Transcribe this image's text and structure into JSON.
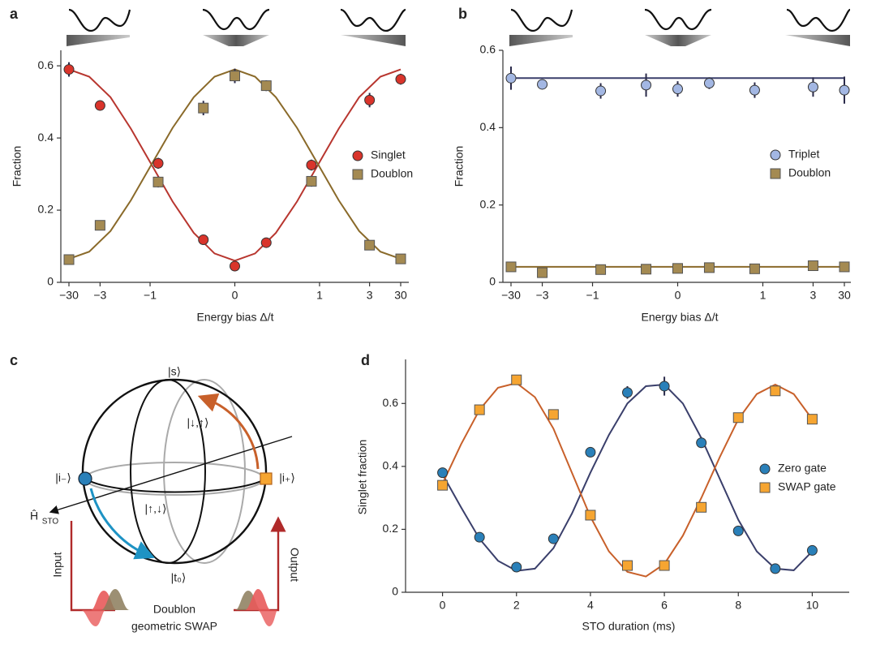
{
  "chart_data": [
    {
      "type": "scatter",
      "panel": "a",
      "xscale": "arctan",
      "x_label": "Energy bias Δ/t",
      "y_label": "Fraction",
      "x": [
        -30,
        -3,
        -0.86,
        -0.3,
        0,
        0.3,
        0.86,
        3,
        30
      ],
      "fit_x": [
        -30,
        -4.44,
        -2.25,
        -1.44,
        -0.97,
        -0.65,
        -0.4,
        -0.19,
        0,
        0.19,
        0.4,
        0.65,
        0.97,
        1.44,
        2.25,
        4.44,
        30
      ],
      "xlim": [
        -30,
        30
      ],
      "xticks": [
        {
          "value": -30,
          "label": "−30"
        },
        {
          "value": -3,
          "label": "−3"
        },
        {
          "value": -1,
          "label": "−1"
        },
        0,
        1,
        3,
        30
      ],
      "ylim": [
        0,
        0.643
      ],
      "yticks": [
        0,
        0.2,
        0.4,
        0.6
      ],
      "series": [
        {
          "name": "Singlet",
          "marker": "circle",
          "color": "#d9342b",
          "line_color": "#b8362f",
          "values": [
            0.59,
            0.49,
            0.33,
            0.118,
            0.045,
            0.11,
            0.325,
            0.505,
            0.563
          ],
          "errors": [
            0.02,
            0.01,
            0.015,
            0.01,
            0.008,
            0.01,
            0.015,
            0.02,
            0.015
          ],
          "fit": [
            0.59,
            0.57,
            0.513,
            0.426,
            0.325,
            0.224,
            0.137,
            0.08,
            0.06,
            0.08,
            0.137,
            0.224,
            0.325,
            0.426,
            0.513,
            0.57,
            0.59
          ]
        },
        {
          "name": "Doublon",
          "marker": "square",
          "color": "#a48a52",
          "line_color": "#8a6a2a",
          "values": [
            0.063,
            0.158,
            0.278,
            0.483,
            0.572,
            0.545,
            0.28,
            0.103,
            0.065
          ],
          "errors": [
            0.008,
            0.01,
            0.015,
            0.02,
            0.02,
            0.015,
            0.015,
            0.01,
            0.008
          ],
          "fit": [
            0.065,
            0.085,
            0.142,
            0.227,
            0.328,
            0.428,
            0.513,
            0.57,
            0.59,
            0.57,
            0.513,
            0.428,
            0.328,
            0.227,
            0.142,
            0.085,
            0.065
          ]
        }
      ]
    },
    {
      "type": "scatter",
      "panel": "b",
      "xscale": "arctan",
      "x_label": "Energy bias Δ/t",
      "y_label": "Fraction",
      "x": [
        -30,
        -3,
        -0.86,
        -0.3,
        0,
        0.3,
        0.86,
        3,
        30
      ],
      "fit_x": [
        -30,
        30
      ],
      "xlim": [
        -30,
        30
      ],
      "xticks": [
        {
          "value": -30,
          "label": "−30"
        },
        {
          "value": -3,
          "label": "−3"
        },
        {
          "value": -1,
          "label": "−1"
        },
        0,
        1,
        3,
        30
      ],
      "ylim": [
        0,
        0.6
      ],
      "yticks": [
        0,
        0.2,
        0.4,
        0.6
      ],
      "series": [
        {
          "name": "Triplet",
          "marker": "circle",
          "color": "#a3b7e3",
          "line_color": "#3a3f6b",
          "values": [
            0.528,
            0.512,
            0.495,
            0.51,
            0.5,
            0.515,
            0.497,
            0.505,
            0.497
          ],
          "errors": [
            0.03,
            0.01,
            0.02,
            0.03,
            0.02,
            0.015,
            0.02,
            0.025,
            0.035
          ],
          "fit": [
            0.528,
            0.528
          ]
        },
        {
          "name": "Doublon",
          "marker": "square",
          "color": "#a48a52",
          "line_color": "#8a6a2a",
          "values": [
            0.04,
            0.025,
            0.033,
            0.034,
            0.036,
            0.038,
            0.035,
            0.043,
            0.04
          ],
          "errors": [
            0.005,
            0.005,
            0.005,
            0.005,
            0.005,
            0.005,
            0.005,
            0.005,
            0.005
          ],
          "fit": [
            0.04,
            0.04
          ]
        }
      ]
    },
    {
      "type": "scatter",
      "panel": "d",
      "x_label": "STO duration (ms)",
      "y_label": "Singlet fraction",
      "x": [
        0,
        1,
        2,
        3,
        4,
        5,
        6,
        7,
        8,
        9,
        10
      ],
      "fit_x": [
        0,
        0.5,
        1,
        1.5,
        2,
        2.5,
        3,
        3.5,
        4,
        4.5,
        5,
        5.5,
        6,
        6.5,
        7,
        7.5,
        8,
        8.5,
        9,
        9.5,
        10
      ],
      "xlim": [
        -1,
        11
      ],
      "xticks": [
        0,
        2,
        4,
        6,
        8,
        10
      ],
      "ylim": [
        0,
        0.74
      ],
      "yticks": [
        0,
        0.2,
        0.4,
        0.6
      ],
      "series": [
        {
          "name": "Zero gate",
          "marker": "circle",
          "color": "#2a80b9",
          "line_color": "#3a3f6b",
          "values": [
            0.38,
            0.175,
            0.08,
            0.17,
            0.445,
            0.635,
            0.655,
            0.475,
            0.195,
            0.075,
            0.133
          ],
          "errors": [
            0.01,
            0.015,
            0.01,
            0.01,
            0.01,
            0.02,
            0.03,
            0.01,
            0.01,
            0.01,
            0.01
          ],
          "fit": [
            0.375,
            0.27,
            0.17,
            0.1,
            0.068,
            0.075,
            0.14,
            0.25,
            0.38,
            0.5,
            0.6,
            0.655,
            0.66,
            0.6,
            0.49,
            0.36,
            0.23,
            0.13,
            0.075,
            0.07,
            0.13
          ]
        },
        {
          "name": "SWAP gate",
          "marker": "square",
          "color": "#f6a531",
          "line_color": "#c8602a",
          "values": [
            0.34,
            0.58,
            0.675,
            0.565,
            0.245,
            0.085,
            0.085,
            0.27,
            0.555,
            0.64,
            0.55
          ],
          "errors": [
            0.015,
            0.015,
            0.015,
            0.015,
            0.01,
            0.01,
            0.01,
            0.01,
            0.01,
            0.015,
            0.015
          ],
          "fit": [
            0.345,
            0.47,
            0.58,
            0.65,
            0.665,
            0.62,
            0.52,
            0.38,
            0.24,
            0.13,
            0.065,
            0.05,
            0.09,
            0.18,
            0.3,
            0.43,
            0.55,
            0.63,
            0.66,
            0.63,
            0.55
          ]
        }
      ]
    }
  ],
  "diagram": {
    "panel": "c",
    "labels": {
      "s": "|s⟩",
      "down_up": "|↓,↑⟩",
      "i_minus": "|i₋⟩",
      "i_plus": "|i₊⟩",
      "up_down": "|↑,↓⟩",
      "h": "Ĥ",
      "h_sub": "STO",
      "t0": "|t₀⟩",
      "input": "Input",
      "output": "Output",
      "doublon": "Doublon",
      "swap": "geometric SWAP"
    }
  }
}
